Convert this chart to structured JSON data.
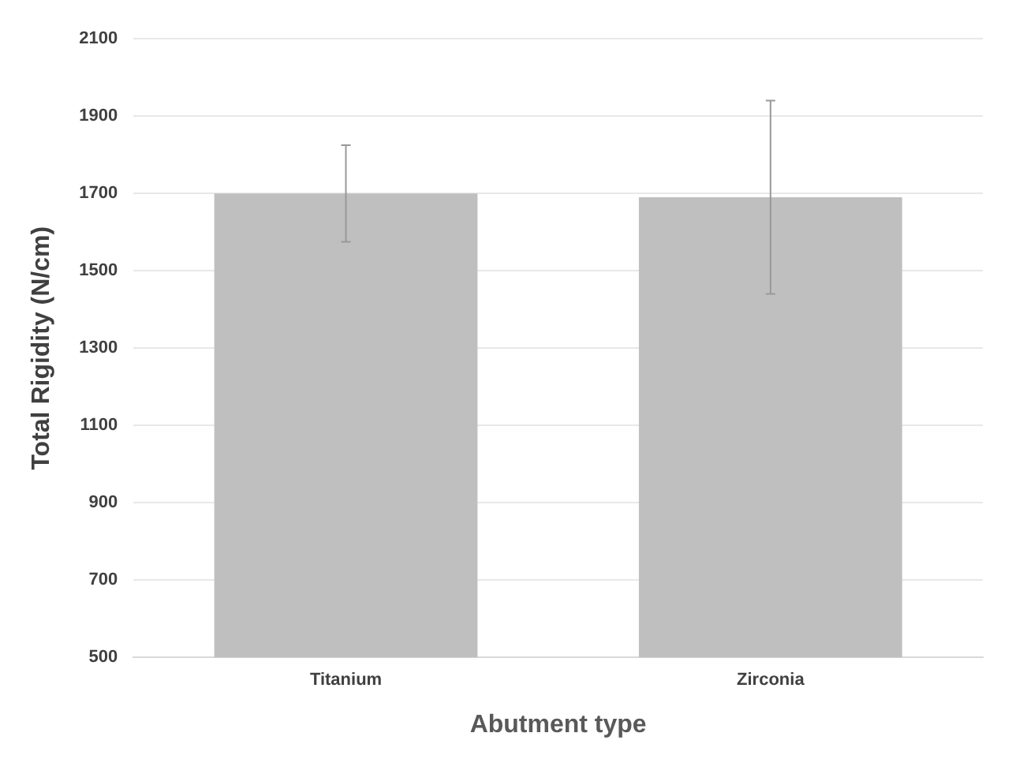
{
  "chart_data": {
    "type": "bar",
    "xlabel": "Abutment type",
    "ylabel": "Total Rigidity (N/cm)",
    "categories": [
      "Titanium",
      "Zirconia"
    ],
    "values": [
      1700,
      1690
    ],
    "errors": [
      125,
      250
    ],
    "color": "#bfbfbf",
    "ylim": [
      500,
      2100
    ],
    "yticks": [
      500,
      700,
      900,
      1100,
      1300,
      1500,
      1700,
      1900,
      2100
    ],
    "grid": "y",
    "legend": false
  }
}
